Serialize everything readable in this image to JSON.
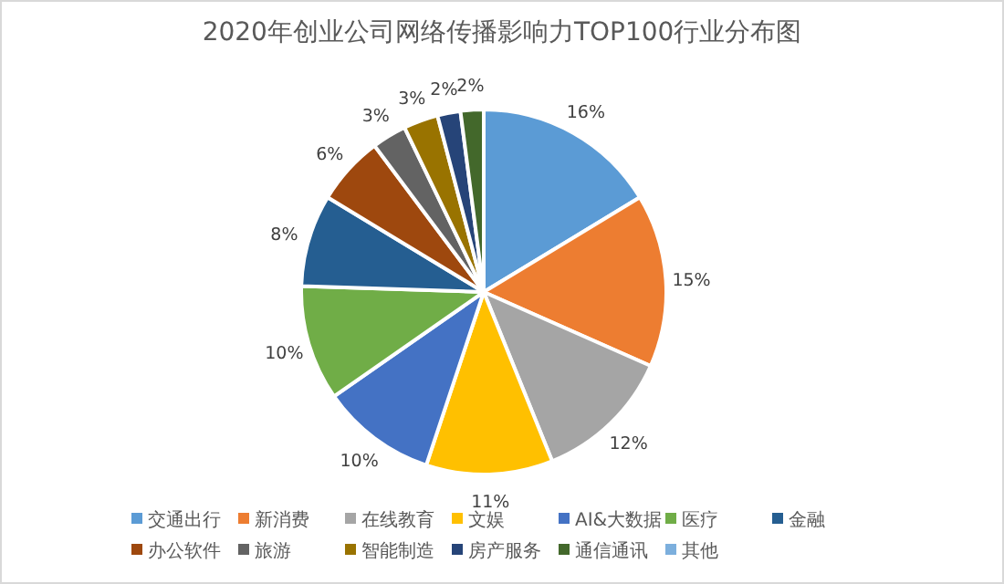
{
  "chart_data": {
    "type": "pie",
    "title": "2020年创业公司网络传播影响力TOP100行业分布图",
    "categories": [
      "交通出行",
      "新消费",
      "在线教育",
      "文娱",
      "AI&大数据",
      "医疗",
      "金融",
      "办公软件",
      "旅游",
      "智能制造",
      "房产服务",
      "通信通讯",
      "其他"
    ],
    "values": [
      16,
      15,
      12,
      11,
      10,
      10,
      8,
      6,
      3,
      3,
      2,
      2,
      0
    ],
    "value_labels": [
      "16%",
      "15%",
      "12%",
      "11%",
      "10%",
      "10%",
      "8%",
      "6%",
      "3%",
      "3%",
      "2%",
      "2%",
      null
    ],
    "colors": [
      "#5b9bd5",
      "#ed7d31",
      "#a5a5a5",
      "#ffc000",
      "#4472c4",
      "#70ad47",
      "#255e91",
      "#9e480e",
      "#636363",
      "#997300",
      "#264478",
      "#43682b",
      "#7cafdd"
    ],
    "legend": "bottom"
  }
}
